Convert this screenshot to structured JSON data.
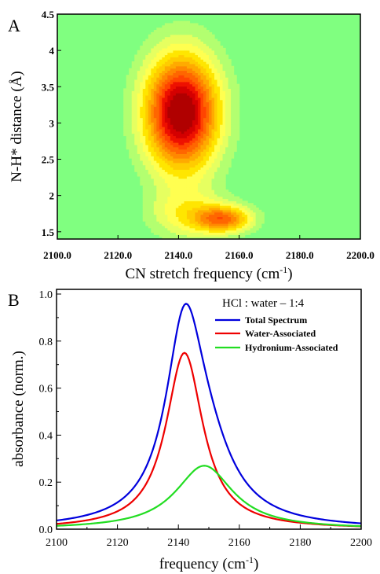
{
  "panels": {
    "A": "A",
    "B": "B"
  },
  "chart_data": [
    {
      "type": "heatmap",
      "xlabel": "CN stretch frequency (cm",
      "xlabel_sup": "-1",
      "xlabel_tail": ")",
      "ylabel": "N-H* distance (Å)",
      "xlim": [
        2100,
        2200
      ],
      "ylim": [
        1.4,
        4.5
      ],
      "xticks": [
        "2100.0",
        "2120.0",
        "2140.0",
        "2160.0",
        "2180.0",
        "2200.0"
      ],
      "yticks": [
        "1.5",
        "2",
        "2.5",
        "3",
        "3.5",
        "4",
        "4.5"
      ],
      "background_color": "#80ff80",
      "colors": [
        "#80ff80",
        "#b3ff70",
        "#e6ff60",
        "#ffff50",
        "#ffe600",
        "#ffcc00",
        "#ffaa00",
        "#ff8800",
        "#ff6600",
        "#ff4400",
        "#ee1100",
        "#d40000",
        "#b00000"
      ],
      "peaks": [
        {
          "x": 2141,
          "y": 3.15,
          "sx": 8.5,
          "sy": 0.55,
          "amp": 1.0
        },
        {
          "x": 2155,
          "y": 1.68,
          "sx": 6.5,
          "sy": 0.13,
          "amp": 0.55
        },
        {
          "x": 2143,
          "y": 1.75,
          "sx": 9.0,
          "sy": 0.25,
          "amp": 0.25
        }
      ]
    },
    {
      "type": "line",
      "xlabel": "frequency (cm",
      "xlabel_sup": "-1",
      "xlabel_tail": ")",
      "ylabel": "absorbance (norm.)",
      "xlim": [
        2100,
        2200
      ],
      "ylim": [
        0,
        1.02
      ],
      "xticks": [
        "2100",
        "2120",
        "2140",
        "2160",
        "2180",
        "2200"
      ],
      "yticks": [
        "0.0",
        "0.2",
        "0.4",
        "0.6",
        "0.8",
        "1.0"
      ],
      "legend_title": "HCl : water – 1:4",
      "series": [
        {
          "name": "Total Spectrum",
          "color": "#0000dd",
          "peaks": [
            {
              "center": 2142,
              "gamma": 7.4,
              "height": 0.75
            },
            {
              "center": 2148.5,
              "gamma": 11.5,
              "height": 0.27
            }
          ]
        },
        {
          "name": "Water-Associated",
          "color": "#ee0000",
          "peaks": [
            {
              "center": 2142,
              "gamma": 7.4,
              "height": 0.75
            }
          ]
        },
        {
          "name": "Hydronium-Associated",
          "color": "#22dd22",
          "peaks": [
            {
              "center": 2148.5,
              "gamma": 11.5,
              "height": 0.27
            }
          ]
        }
      ]
    }
  ]
}
